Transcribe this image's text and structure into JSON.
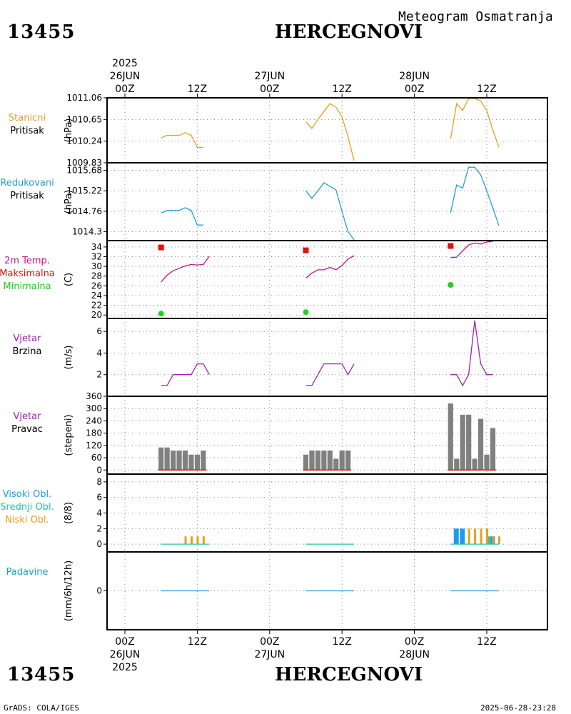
{
  "header": {
    "station_id": "13455",
    "station_name": "HERCEGNOVI",
    "subtitle": "Meteogram Osmatranja"
  },
  "footer": {
    "station_id": "13455",
    "station_name": "HERCEGNOVI",
    "credit": "GrADS: COLA/IGES",
    "timestamp": "2025-06-28-23:28"
  },
  "time_axis": {
    "start_year": "2025",
    "hours_range": [
      0,
      72
    ],
    "major_ticks": [
      {
        "hour": 0,
        "label": "00Z",
        "date": "26JUN"
      },
      {
        "hour": 12,
        "label": "12Z",
        "date": ""
      },
      {
        "hour": 24,
        "label": "00Z",
        "date": "27JUN"
      },
      {
        "hour": 36,
        "label": "12Z",
        "date": ""
      },
      {
        "hour": 48,
        "label": "00Z",
        "date": "28JUN"
      },
      {
        "hour": 60,
        "label": "12Z",
        "date": ""
      }
    ]
  },
  "colors": {
    "pressure_station": "#e6a020",
    "pressure_reduced": "#20a0d0",
    "temp_line": "#c0188a",
    "temp_max": "#e01010",
    "temp_min": "#20d020",
    "wind": "#a020b0",
    "wind_dir_bar": "#808080",
    "wind_dir_base": "#e01010",
    "cloud_high": "#1e9be6",
    "cloud_mid": "#20c8a0",
    "cloud_low": "#e6a020",
    "precip": "#20a0c8",
    "frame": "#000000",
    "grid": "#888888"
  },
  "chart_data": [
    {
      "type": "line",
      "id": "station_pressure",
      "labels": [
        "Stanicni",
        "Pritisak"
      ],
      "ylabel": "(hPa)",
      "ylim": [
        1009.83,
        1011.06
      ],
      "yticks": [
        1009.83,
        1010.24,
        1010.65,
        1011.06
      ],
      "ytick_labels": [
        "1009.83",
        "1010.24",
        "1010.65",
        "1011.06"
      ],
      "segments": [
        [
          [
            6,
            1010.3
          ],
          [
            7,
            1010.35
          ],
          [
            8,
            1010.35
          ],
          [
            9,
            1010.35
          ],
          [
            10,
            1010.4
          ],
          [
            11,
            1010.35
          ],
          [
            12,
            1010.12
          ],
          [
            13,
            1010.12
          ]
        ],
        [
          [
            30,
            1010.6
          ],
          [
            31,
            1010.48
          ],
          [
            32,
            1010.65
          ],
          [
            33,
            1010.8
          ],
          [
            34,
            1010.95
          ],
          [
            35,
            1010.88
          ],
          [
            36,
            1010.7
          ],
          [
            37,
            1010.32
          ],
          [
            38,
            1009.87
          ]
        ],
        [
          [
            54,
            1010.28
          ],
          [
            55,
            1010.95
          ],
          [
            56,
            1010.82
          ],
          [
            57,
            1011.06
          ],
          [
            58,
            1011.06
          ],
          [
            59,
            1011.0
          ],
          [
            60,
            1010.82
          ],
          [
            61,
            1010.45
          ],
          [
            62,
            1010.13
          ]
        ]
      ]
    },
    {
      "type": "line",
      "id": "reduced_pressure",
      "labels": [
        "Redukovani",
        "Pritisak"
      ],
      "ylabel": "(hPa)",
      "ylim": [
        1014.1,
        1015.85
      ],
      "yticks": [
        1014.3,
        1014.76,
        1015.22,
        1015.68
      ],
      "ytick_labels": [
        "1014.3",
        "1014.76",
        "1015.22",
        "1015.68"
      ],
      "segments": [
        [
          [
            6,
            1014.72
          ],
          [
            7,
            1014.78
          ],
          [
            8,
            1014.78
          ],
          [
            9,
            1014.78
          ],
          [
            10,
            1014.84
          ],
          [
            11,
            1014.78
          ],
          [
            12,
            1014.45
          ],
          [
            13,
            1014.45
          ]
        ],
        [
          [
            30,
            1015.22
          ],
          [
            31,
            1015.05
          ],
          [
            32,
            1015.22
          ],
          [
            33,
            1015.4
          ],
          [
            34,
            1015.32
          ],
          [
            35,
            1015.24
          ],
          [
            36,
            1014.75
          ],
          [
            37,
            1014.3
          ],
          [
            38,
            1013.98
          ]
        ],
        [
          [
            54,
            1014.73
          ],
          [
            55,
            1015.35
          ],
          [
            56,
            1015.28
          ],
          [
            57,
            1015.75
          ],
          [
            58,
            1015.75
          ],
          [
            59,
            1015.58
          ],
          [
            60,
            1015.22
          ],
          [
            61,
            1014.84
          ],
          [
            62,
            1014.44
          ]
        ]
      ]
    },
    {
      "type": "line",
      "id": "temperature",
      "labels": [
        "2m Temp.",
        "Maksimalna",
        "Minimalna"
      ],
      "ylabel": "(C)",
      "ylim": [
        19.3,
        35.3
      ],
      "yticks": [
        20,
        22,
        24,
        26,
        28,
        30,
        32,
        34
      ],
      "ytick_labels": [
        "20",
        "22",
        "24",
        "26",
        "28",
        "30",
        "32",
        "34"
      ],
      "segments": [
        [
          [
            6,
            26.8
          ],
          [
            7,
            28.2
          ],
          [
            8,
            29.1
          ],
          [
            9,
            29.6
          ],
          [
            10,
            30.1
          ],
          [
            11,
            30.4
          ],
          [
            12,
            30.3
          ],
          [
            13,
            30.4
          ],
          [
            14,
            32.1
          ]
        ],
        [
          [
            30,
            27.6
          ],
          [
            31,
            28.6
          ],
          [
            32,
            29.3
          ],
          [
            33,
            29.3
          ],
          [
            34,
            29.8
          ],
          [
            35,
            29.3
          ],
          [
            36,
            30.2
          ],
          [
            37,
            31.5
          ],
          [
            38,
            32.2
          ]
        ],
        [
          [
            54,
            31.8
          ],
          [
            55,
            31.9
          ],
          [
            56,
            33.2
          ],
          [
            57,
            34.4
          ],
          [
            58,
            34.8
          ],
          [
            59,
            34.6
          ],
          [
            60,
            35.0
          ],
          [
            61,
            35.4
          ]
        ]
      ],
      "max_points": [
        [
          6,
          33.9
        ],
        [
          30,
          33.3
        ],
        [
          54,
          34.2
        ]
      ],
      "min_points": [
        [
          6,
          20.3
        ],
        [
          30,
          20.6
        ],
        [
          54,
          26.2
        ]
      ]
    },
    {
      "type": "line",
      "id": "wind_speed",
      "labels": [
        "Vjetar",
        "Brzina"
      ],
      "ylabel": "(m/s)",
      "ylim": [
        0,
        7.2
      ],
      "yticks": [
        2,
        4,
        6
      ],
      "ytick_labels": [
        "2",
        "4",
        "6"
      ],
      "segments": [
        [
          [
            6,
            1
          ],
          [
            7,
            1
          ],
          [
            8,
            2
          ],
          [
            9,
            2
          ],
          [
            10,
            2
          ],
          [
            11,
            2
          ],
          [
            12,
            3
          ],
          [
            13,
            3
          ],
          [
            14,
            2
          ]
        ],
        [
          [
            30,
            1
          ],
          [
            31,
            1
          ],
          [
            32,
            2
          ],
          [
            33,
            3
          ],
          [
            34,
            3
          ],
          [
            35,
            3
          ],
          [
            36,
            3
          ],
          [
            37,
            2
          ],
          [
            38,
            3
          ]
        ],
        [
          [
            54,
            2
          ],
          [
            55,
            2
          ],
          [
            56,
            1
          ],
          [
            57,
            2
          ],
          [
            58,
            7
          ],
          [
            59,
            3
          ],
          [
            60,
            2
          ],
          [
            61,
            2
          ]
        ]
      ]
    },
    {
      "type": "bar",
      "id": "wind_direction",
      "labels": [
        "Vjetar",
        "Pravac"
      ],
      "ylabel": "(stepeni)",
      "ylim": [
        -20,
        360
      ],
      "yticks": [
        0,
        60,
        120,
        180,
        240,
        300,
        360
      ],
      "ytick_labels": [
        "0",
        "60",
        "120",
        "180",
        "240",
        "300",
        "360"
      ],
      "x": [
        6,
        7,
        8,
        9,
        10,
        11,
        12,
        13,
        30,
        31,
        32,
        33,
        34,
        35,
        36,
        37,
        54,
        55,
        56,
        57,
        58,
        59,
        60,
        61
      ],
      "values": [
        110,
        110,
        95,
        95,
        95,
        75,
        75,
        95,
        75,
        95,
        95,
        95,
        95,
        55,
        95,
        95,
        325,
        55,
        270,
        270,
        55,
        250,
        75,
        205
      ]
    },
    {
      "type": "bar",
      "id": "clouds",
      "labels": [
        "Visoki Obl.",
        "Srednji Obl.",
        "Niski Obl."
      ],
      "ylabel": "(8/8)",
      "ylim": [
        -1,
        9
      ],
      "yticks": [
        0,
        2,
        4,
        6,
        8
      ],
      "ytick_labels": [
        "0",
        "2",
        "4",
        "6",
        "8"
      ],
      "series": [
        {
          "name": "Visoki Obl.",
          "x": [
            55,
            56,
            61
          ],
          "values": [
            2,
            2,
            1
          ]
        },
        {
          "name": "Srednji Obl.",
          "x": [
            60
          ],
          "values": [
            1
          ]
        },
        {
          "name": "Niski Obl.",
          "x": [
            10,
            11,
            12,
            13,
            57,
            58,
            59,
            60,
            61,
            62
          ],
          "values": [
            1,
            1,
            1,
            1,
            2,
            2,
            2,
            2,
            1,
            1
          ]
        }
      ]
    },
    {
      "type": "line",
      "id": "precipitation",
      "labels": [
        "Padavine"
      ],
      "ylabel": "(mm/6h/12h)",
      "ylim": [
        -4,
        4
      ],
      "yticks": [
        0
      ],
      "ytick_labels": [
        "0"
      ],
      "segments": [
        [
          [
            6,
            0
          ],
          [
            14,
            0
          ]
        ],
        [
          [
            30,
            0
          ],
          [
            38,
            0
          ]
        ],
        [
          [
            54,
            0
          ],
          [
            62,
            0
          ]
        ]
      ]
    }
  ]
}
